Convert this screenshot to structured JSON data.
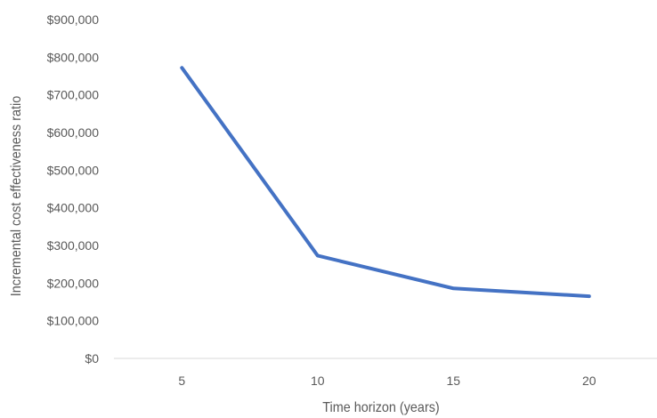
{
  "chart_data": {
    "type": "line",
    "title": "",
    "xlabel": "Time horizon (years)",
    "ylabel": "Incremental cost effectiveness ratio",
    "categories": [
      "5",
      "10",
      "15",
      "20"
    ],
    "series": [
      {
        "values": [
          772000,
          273000,
          186000,
          165000
        ],
        "color": "#4472c4"
      }
    ],
    "ylim": [
      0,
      900000
    ],
    "y_ticks": [
      {
        "value": 0,
        "label": "$0"
      },
      {
        "value": 100000,
        "label": "$100,000"
      },
      {
        "value": 200000,
        "label": "$200,000"
      },
      {
        "value": 300000,
        "label": "$300,000"
      },
      {
        "value": 400000,
        "label": "$400,000"
      },
      {
        "value": 500000,
        "label": "$500,000"
      },
      {
        "value": 600000,
        "label": "$600,000"
      },
      {
        "value": 700000,
        "label": "$700,000"
      },
      {
        "value": 800000,
        "label": "$800,000"
      },
      {
        "value": 900000,
        "label": "$900,000"
      }
    ],
    "grid": false,
    "legend": "none",
    "axis_color": "#d9d9d9",
    "text_color": "#595959"
  }
}
